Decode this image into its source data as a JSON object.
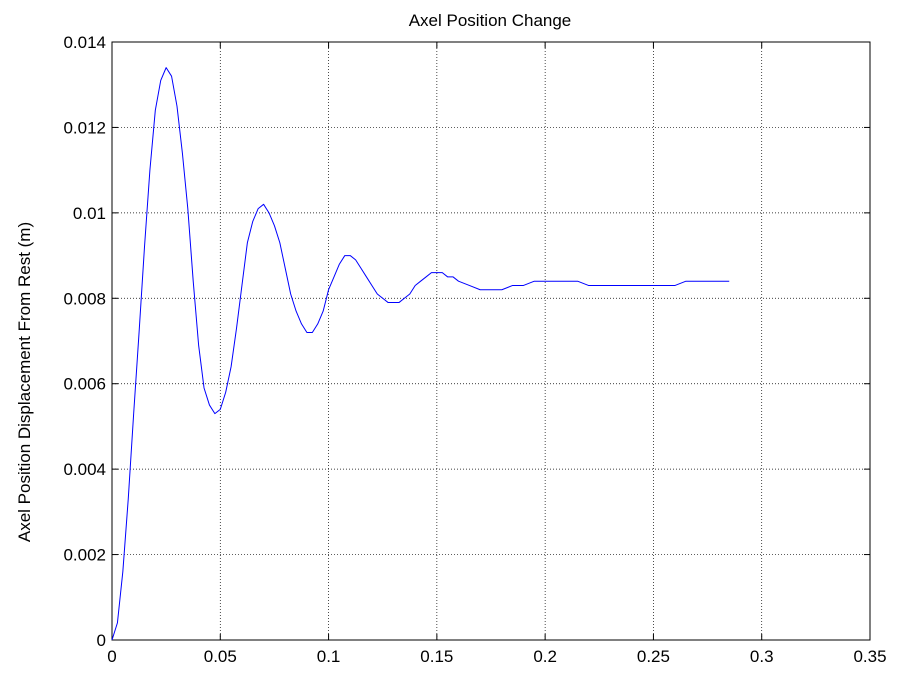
{
  "chart_data": {
    "type": "line",
    "title": "Axel Position Change",
    "xlabel": "",
    "ylabel": "Axel Position Displacement From Rest (m)",
    "xlim": [
      0,
      0.35
    ],
    "ylim": [
      0,
      0.014
    ],
    "x_ticks": [
      "0",
      "0.05",
      "0.1",
      "0.15",
      "0.2",
      "0.25",
      "0.3",
      "0.35"
    ],
    "y_ticks": [
      "0",
      "0.002",
      "0.004",
      "0.006",
      "0.008",
      "0.01",
      "0.012",
      "0.014"
    ],
    "grid": true,
    "line_color": "#0000ff",
    "series": [
      {
        "x": [
          0,
          0.0025,
          0.005,
          0.0075,
          0.01,
          0.0125,
          0.015,
          0.0175,
          0.02,
          0.0225,
          0.025,
          0.0275,
          0.03,
          0.0325,
          0.035,
          0.0375,
          0.04,
          0.0425,
          0.045,
          0.0475,
          0.05,
          0.0525,
          0.055,
          0.0575,
          0.06,
          0.0625,
          0.065,
          0.0675,
          0.07,
          0.0725,
          0.075,
          0.0775,
          0.08,
          0.0825,
          0.085,
          0.0875,
          0.09,
          0.0925,
          0.095,
          0.0975,
          0.1,
          0.1025,
          0.105,
          0.1075,
          0.11,
          0.1125,
          0.115,
          0.1175,
          0.12,
          0.1225,
          0.125,
          0.1275,
          0.13,
          0.1325,
          0.135,
          0.1375,
          0.14,
          0.1425,
          0.145,
          0.1475,
          0.15,
          0.1525,
          0.155,
          0.1575,
          0.16,
          0.165,
          0.17,
          0.175,
          0.18,
          0.185,
          0.19,
          0.195,
          0.2,
          0.205,
          0.21,
          0.215,
          0.22,
          0.225,
          0.23,
          0.235,
          0.24,
          0.245,
          0.25,
          0.255,
          0.26,
          0.265,
          0.27,
          0.275,
          0.28,
          0.285
        ],
        "y": [
          0,
          0.0004,
          0.0016,
          0.0033,
          0.0053,
          0.0072,
          0.0092,
          0.011,
          0.0124,
          0.0131,
          0.0134,
          0.0132,
          0.0125,
          0.0114,
          0.0101,
          0.0084,
          0.0069,
          0.0059,
          0.0055,
          0.0053,
          0.0054,
          0.0058,
          0.0064,
          0.0073,
          0.0083,
          0.0093,
          0.0098,
          0.0101,
          0.0102,
          0.01,
          0.0097,
          0.0093,
          0.0087,
          0.0081,
          0.0077,
          0.0074,
          0.0072,
          0.0072,
          0.0074,
          0.0077,
          0.0082,
          0.0085,
          0.0088,
          0.009,
          0.009,
          0.0089,
          0.0087,
          0.0085,
          0.0083,
          0.0081,
          0.008,
          0.0079,
          0.0079,
          0.0079,
          0.008,
          0.0081,
          0.0083,
          0.0084,
          0.0085,
          0.0086,
          0.0086,
          0.0086,
          0.0085,
          0.0085,
          0.0084,
          0.0083,
          0.0082,
          0.0082,
          0.0082,
          0.0083,
          0.0083,
          0.0084,
          0.0084,
          0.0084,
          0.0084,
          0.0084,
          0.0083,
          0.0083,
          0.0083,
          0.0083,
          0.0083,
          0.0083,
          0.0083,
          0.0083,
          0.0083,
          0.0084,
          0.0084,
          0.0084,
          0.0084,
          0.0084
        ]
      }
    ]
  }
}
